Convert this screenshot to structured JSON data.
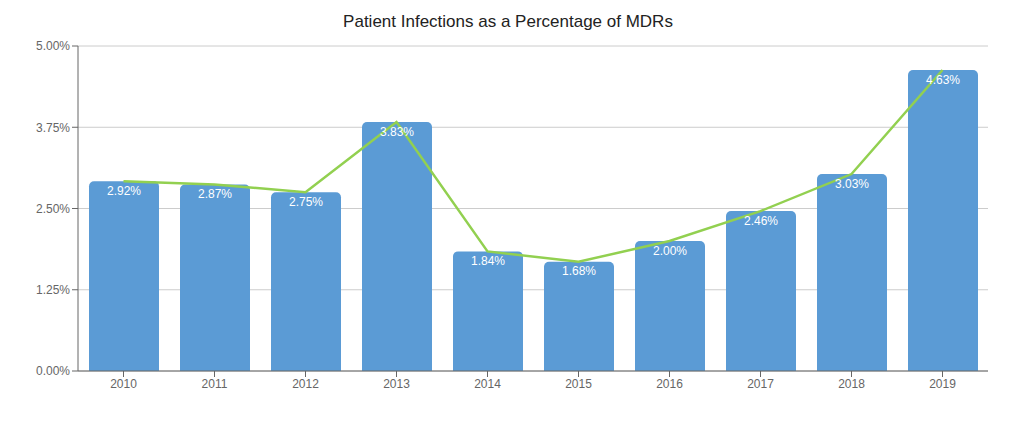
{
  "chart_data": {
    "type": "bar",
    "title": "Patient Infections as a Percentage of MDRs",
    "categories": [
      "2010",
      "2011",
      "2012",
      "2013",
      "2014",
      "2015",
      "2016",
      "2017",
      "2018",
      "2019"
    ],
    "series": [
      {
        "type": "bar",
        "color": "#5B9BD5",
        "values": [
          0.0292,
          0.0287,
          0.0275,
          0.0383,
          0.0184,
          0.0168,
          0.02,
          0.0246,
          0.0303,
          0.0463
        ],
        "value_labels": [
          "2.92%",
          "2.87%",
          "2.75%",
          "3.83%",
          "1.84%",
          "1.68%",
          "2.00%",
          "2.46%",
          "3.03%",
          "4.63%"
        ]
      },
      {
        "type": "line",
        "color": "#92D050",
        "values": [
          0.0292,
          0.0287,
          0.0275,
          0.0383,
          0.0184,
          0.0168,
          0.02,
          0.0246,
          0.0303,
          0.0463
        ]
      }
    ],
    "data_labels": true,
    "ylim": [
      0,
      0.05
    ],
    "yticks": [
      {
        "value": 0.0,
        "label": "0.00%"
      },
      {
        "value": 0.0125,
        "label": "1.25%"
      },
      {
        "value": 0.025,
        "label": "2.50%"
      },
      {
        "value": 0.0375,
        "label": "3.75%"
      },
      {
        "value": 0.05,
        "label": "5.00%"
      }
    ],
    "grid": "y"
  }
}
